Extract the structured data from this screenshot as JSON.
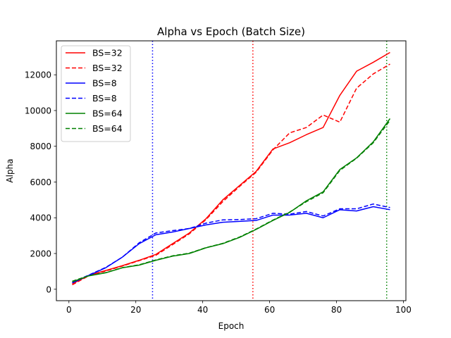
{
  "chart_data": {
    "type": "line",
    "title": "Alpha vs Epoch (Batch Size)",
    "xlabel": "Epoch",
    "ylabel": "Alpha",
    "xlim": [
      -3.75,
      100.75
    ],
    "ylim": [
      -640,
      13900
    ],
    "xticks": [
      0,
      20,
      40,
      60,
      80,
      100
    ],
    "yticks": [
      0,
      2000,
      4000,
      6000,
      8000,
      10000,
      12000
    ],
    "grid": false,
    "legend_position": "top-left",
    "x": [
      1,
      6,
      11,
      16,
      21,
      26,
      31,
      36,
      41,
      46,
      51,
      56,
      61,
      66,
      71,
      76,
      81,
      86,
      91,
      96
    ],
    "series": [
      {
        "name": "BS=32",
        "color": "#ff0000",
        "style": "solid",
        "values": [
          300,
          780,
          1050,
          1320,
          1620,
          1950,
          2550,
          3150,
          3950,
          5000,
          5800,
          6600,
          7850,
          8200,
          8650,
          9050,
          10850,
          12200,
          12700,
          13250
        ]
      },
      {
        "name": "BS=32",
        "color": "#ff0000",
        "style": "dashed",
        "values": [
          250,
          760,
          1020,
          1300,
          1600,
          1900,
          2500,
          3100,
          3900,
          4900,
          5750,
          6550,
          7800,
          8750,
          9050,
          9750,
          9350,
          11250,
          12050,
          12600
        ]
      },
      {
        "name": "BS=8",
        "color": "#0000ff",
        "style": "solid",
        "values": [
          350,
          780,
          1200,
          1800,
          2550,
          3050,
          3200,
          3400,
          3600,
          3750,
          3800,
          3850,
          4150,
          4150,
          4250,
          4000,
          4450,
          4380,
          4620,
          4450
        ]
      },
      {
        "name": "BS=8",
        "color": "#0000ff",
        "style": "dashed",
        "values": [
          380,
          800,
          1220,
          1800,
          2600,
          3150,
          3280,
          3400,
          3700,
          3880,
          3900,
          3950,
          4250,
          4200,
          4350,
          4100,
          4500,
          4500,
          4770,
          4570
        ]
      },
      {
        "name": "BS=64",
        "color": "#008000",
        "style": "solid",
        "values": [
          420,
          750,
          920,
          1200,
          1350,
          1620,
          1850,
          2000,
          2320,
          2550,
          2900,
          3350,
          3850,
          4300,
          4950,
          5450,
          6700,
          7350,
          8250,
          9550
        ]
      },
      {
        "name": "BS=64",
        "color": "#008000",
        "style": "dashed",
        "values": [
          450,
          760,
          930,
          1210,
          1370,
          1640,
          1870,
          2020,
          2330,
          2570,
          2920,
          3370,
          3870,
          4320,
          4900,
          5400,
          6650,
          7330,
          8200,
          9450
        ]
      }
    ],
    "vlines": [
      {
        "x": 25,
        "color": "#0000ff",
        "style": "dotted"
      },
      {
        "x": 55,
        "color": "#ff0000",
        "style": "dotted"
      },
      {
        "x": 95,
        "color": "#008000",
        "style": "dotted"
      }
    ]
  }
}
